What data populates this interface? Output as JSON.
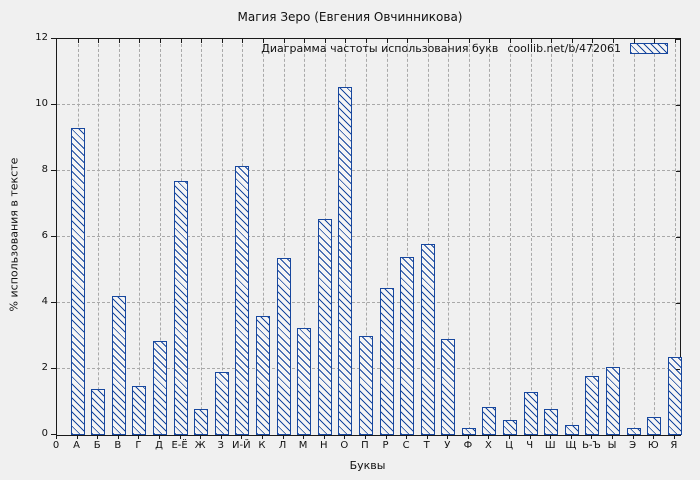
{
  "title": "Магия Зеро (Евгения Овчинникова)",
  "legend": {
    "label": "Диаграмма частоты использования букв",
    "link": "coollib.net/b/472061"
  },
  "axes": {
    "xlabel": "Буквы",
    "ylabel": "% использования в тексте",
    "origin_label": "0",
    "y_ticks": [
      0,
      2,
      4,
      6,
      8,
      10,
      12
    ]
  },
  "colors": {
    "bar": "#17479e",
    "background": "#f0f0f0",
    "grid": "#a9a9a9",
    "text": "#111111"
  },
  "chart_data": {
    "type": "bar",
    "title": "Магия Зеро (Евгения Овчинникова)",
    "xlabel": "Буквы",
    "ylabel": "% использования в тексте",
    "ylim": [
      0,
      12
    ],
    "grid": true,
    "legend_position": "top-right-inside",
    "legend_label": "Диаграмма частоты использования букв coollib.net/b/472061",
    "hatch": "backslash-diagonal",
    "categories": [
      "А",
      "Б",
      "В",
      "Г",
      "Д",
      "Е-Ё",
      "Ж",
      "З",
      "И-Й",
      "К",
      "Л",
      "М",
      "Н",
      "О",
      "П",
      "Р",
      "С",
      "Т",
      "У",
      "Ф",
      "Х",
      "Ц",
      "Ч",
      "Ш",
      "Щ",
      "Ь-Ъ",
      "Ы",
      "Э",
      "Ю",
      "Я"
    ],
    "values": [
      9.3,
      1.4,
      4.2,
      1.5,
      2.85,
      7.7,
      0.8,
      1.9,
      8.15,
      3.6,
      5.35,
      3.25,
      6.55,
      10.55,
      3.0,
      4.45,
      5.4,
      5.8,
      2.9,
      0.2,
      0.85,
      0.45,
      1.3,
      0.8,
      0.3,
      1.8,
      2.05,
      0.2,
      0.55,
      2.35
    ]
  }
}
